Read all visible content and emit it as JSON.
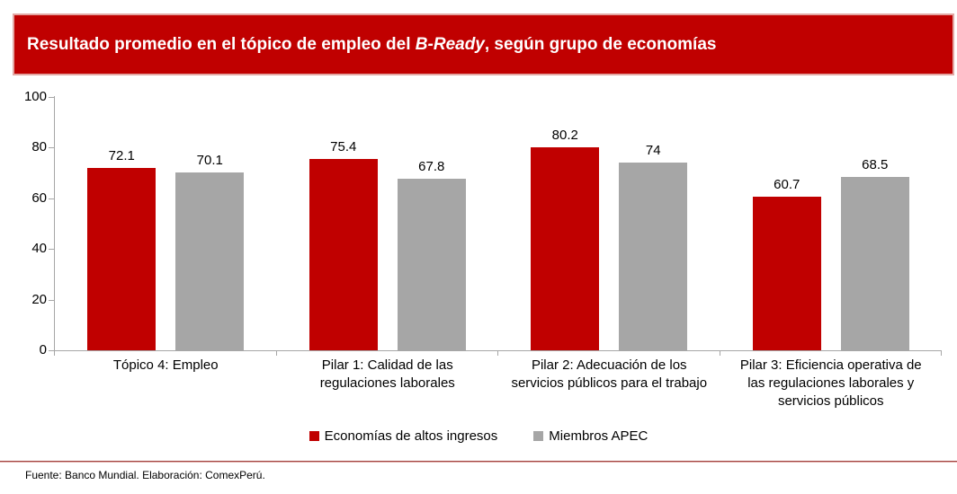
{
  "header": {
    "title_prefix": "Resultado promedio en el tópico de empleo del ",
    "title_emphasis": "B-Ready",
    "title_suffix": ", según grupo de economías"
  },
  "chart_data": {
    "type": "bar",
    "title": "Resultado promedio en el tópico de empleo del B-Ready, según grupo de economías",
    "categories": [
      "Tópico 4: Empleo",
      "Pilar 1: Calidad de las regulaciones laborales",
      "Pilar 2: Adecuación de los servicios públicos para el trabajo",
      "Pilar 3: Eficiencia operativa de las regulaciones laborales y servicios públicos"
    ],
    "series": [
      {
        "name": "Economías de altos ingresos",
        "color": "#C00000",
        "values": [
          72.1,
          75.4,
          80.2,
          60.7
        ]
      },
      {
        "name": "Miembros APEC",
        "color": "#A6A6A6",
        "values": [
          70.1,
          67.8,
          74,
          68.5
        ]
      }
    ],
    "ylim": [
      0,
      100
    ],
    "yticks": [
      0,
      20,
      40,
      60,
      80,
      100
    ],
    "grid": false,
    "data_labels": true,
    "legend_position": "bottom"
  },
  "footer": {
    "source": "Fuente: Banco Mundial. Elaboración: ComexPerú."
  },
  "colors": {
    "accent_red": "#C00000",
    "bar_gray": "#A6A6A6",
    "axis": "#A6A6A6",
    "banner_border": "#E3A7A3",
    "rule_dark": "#A04340",
    "rule_light": "#E3AEAB"
  }
}
